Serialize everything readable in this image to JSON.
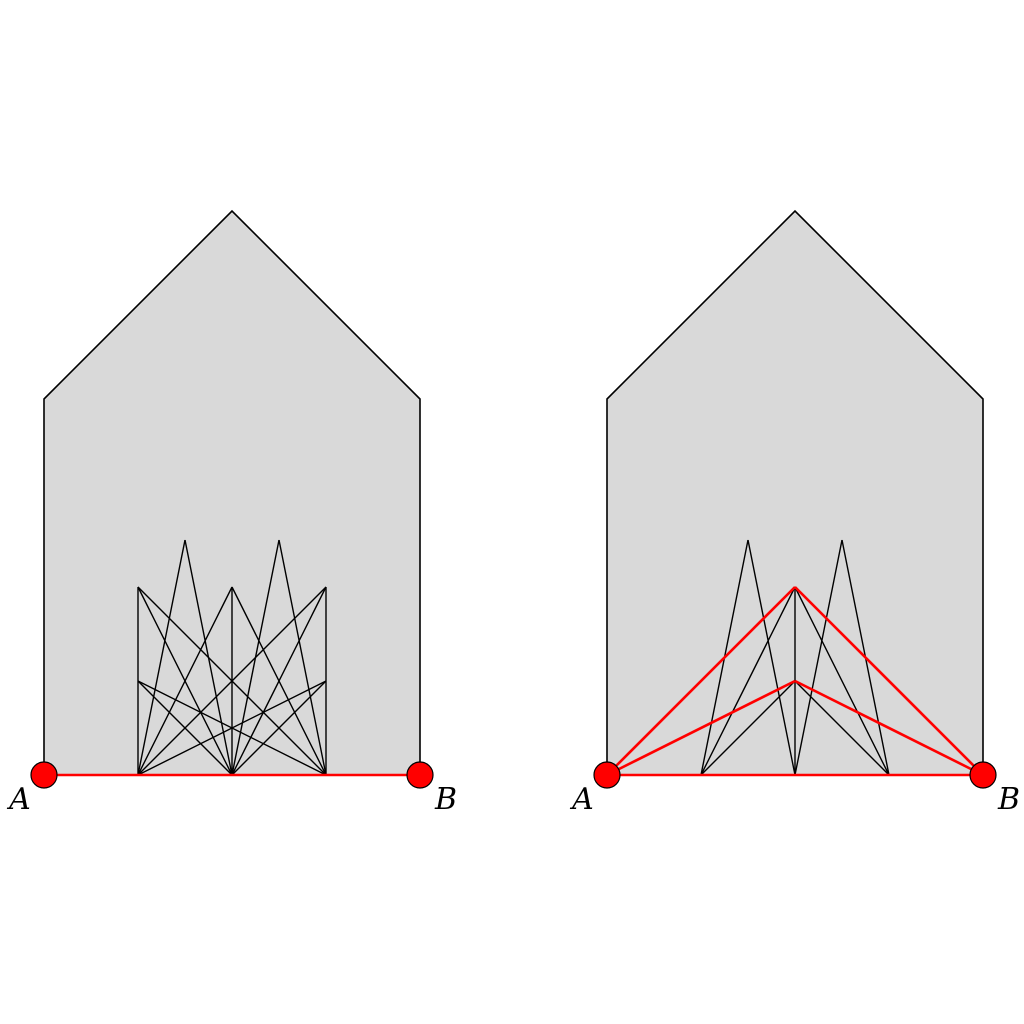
{
  "colors": {
    "polygon_fill": "#d9d9d9",
    "edge": "#000000",
    "highlight": "#ff0000"
  },
  "panels": [
    {
      "name": "left-panel",
      "black_edges": [
        [
          [
            1,
            0
          ],
          [
            1,
            2
          ]
        ],
        [
          [
            2,
            0
          ],
          [
            2,
            2
          ]
        ],
        [
          [
            3,
            0
          ],
          [
            3,
            2
          ]
        ],
        [
          [
            1,
            0
          ],
          [
            1.5,
            2.5
          ]
        ],
        [
          [
            2,
            0
          ],
          [
            1.5,
            2.5
          ]
        ],
        [
          [
            2,
            0
          ],
          [
            2.5,
            2.5
          ]
        ],
        [
          [
            3,
            0
          ],
          [
            2.5,
            2.5
          ]
        ],
        [
          [
            1,
            0
          ],
          [
            2,
            2
          ]
        ],
        [
          [
            1,
            0
          ],
          [
            3,
            2
          ]
        ],
        [
          [
            2,
            0
          ],
          [
            1,
            2
          ]
        ],
        [
          [
            2,
            0
          ],
          [
            3,
            2
          ]
        ],
        [
          [
            3,
            0
          ],
          [
            1,
            2
          ]
        ],
        [
          [
            3,
            0
          ],
          [
            2,
            2
          ]
        ],
        [
          [
            1,
            0
          ],
          [
            3,
            1
          ]
        ],
        [
          [
            3,
            0
          ],
          [
            1,
            1
          ]
        ],
        [
          [
            2,
            0
          ],
          [
            1,
            1
          ]
        ],
        [
          [
            2,
            0
          ],
          [
            3,
            1
          ]
        ]
      ],
      "red_edges": [
        [
          [
            0,
            0
          ],
          [
            4,
            0
          ]
        ]
      ],
      "nodes": [
        {
          "label": "A",
          "pos": [
            0,
            0
          ],
          "label_side": "below-left"
        },
        {
          "label": "B",
          "pos": [
            4,
            0
          ],
          "label_side": "below-right"
        }
      ]
    },
    {
      "name": "right-panel",
      "black_edges": [
        [
          [
            1,
            0
          ],
          [
            1.5,
            2.5
          ]
        ],
        [
          [
            2,
            0
          ],
          [
            1.5,
            2.5
          ]
        ],
        [
          [
            2,
            0
          ],
          [
            2.5,
            2.5
          ]
        ],
        [
          [
            3,
            0
          ],
          [
            2.5,
            2.5
          ]
        ],
        [
          [
            2,
            0
          ],
          [
            2,
            2
          ]
        ],
        [
          [
            1,
            0
          ],
          [
            2,
            2
          ]
        ],
        [
          [
            3,
            0
          ],
          [
            2,
            2
          ]
        ],
        [
          [
            1,
            0
          ],
          [
            2,
            1
          ]
        ],
        [
          [
            3,
            0
          ],
          [
            2,
            1
          ]
        ]
      ],
      "red_edges": [
        [
          [
            0,
            0
          ],
          [
            4,
            0
          ]
        ],
        [
          [
            0,
            0
          ],
          [
            2,
            2
          ]
        ],
        [
          [
            4,
            0
          ],
          [
            2,
            2
          ]
        ],
        [
          [
            0,
            0
          ],
          [
            2,
            1
          ]
        ],
        [
          [
            4,
            0
          ],
          [
            2,
            1
          ]
        ]
      ],
      "nodes": [
        {
          "label": "A",
          "pos": [
            0,
            0
          ],
          "label_side": "below-left"
        },
        {
          "label": "B",
          "pos": [
            4,
            0
          ],
          "label_side": "below-right"
        }
      ]
    }
  ]
}
